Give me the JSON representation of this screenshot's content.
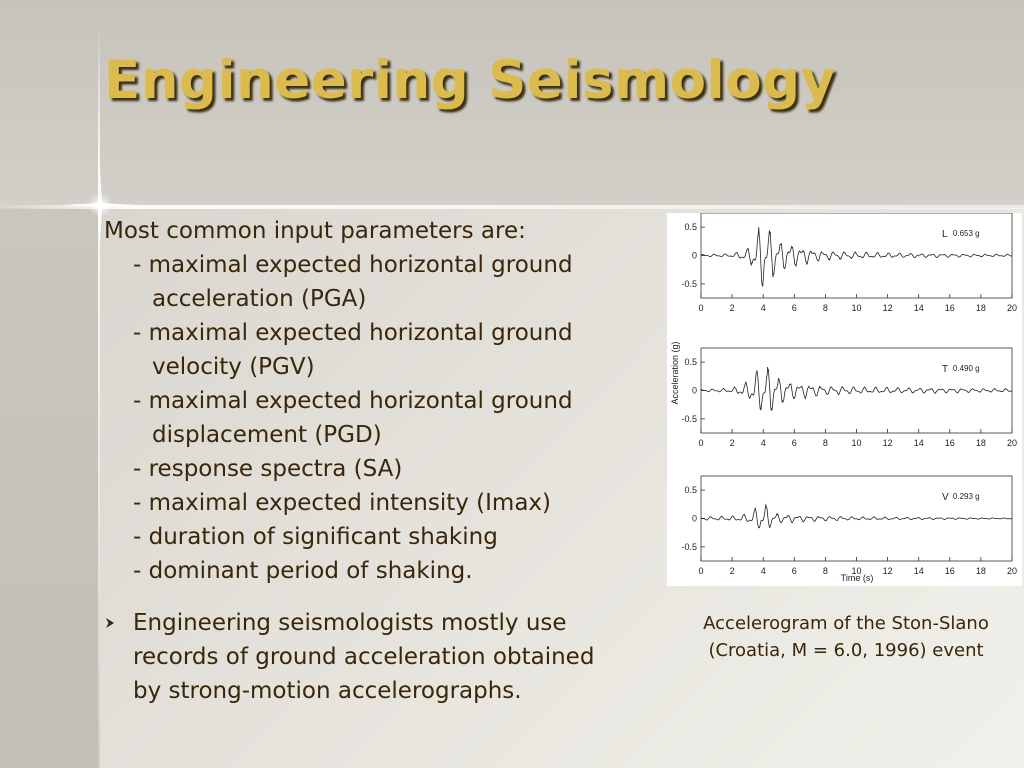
{
  "slide": {
    "title": "Engineering Seismology",
    "intro": "Most common input parameters are:",
    "params": [
      [
        "- maximal expected horizontal ground",
        "acceleration (PGA)"
      ],
      [
        "- maximal expected horizontal ground",
        "velocity (PGV)"
      ],
      [
        "- maximal expected horizontal ground",
        "displacement (PGD)"
      ],
      [
        "- response spectra (SA)"
      ],
      [
        "- maximal expected intensity (Imax)"
      ],
      [
        "- duration of significant shaking"
      ],
      [
        "- dominant period of shaking."
      ]
    ],
    "bullet_icon": "arrowhead-bullet-icon",
    "bullet_lines": [
      "Engineering seismologists mostly use",
      "records of ground acceleration obtained",
      "by strong-motion accelerographs."
    ],
    "caption_lines": [
      "Accelerogram of the Ston-Slano",
      "(Croatia, M = 6.0, 1996) event"
    ],
    "colors": {
      "title": "#dcbb4e",
      "body_text": "#3a2608",
      "trace": "#222222"
    }
  },
  "chart_data": {
    "type": "line",
    "title": "",
    "xlabel": "Time (s)",
    "ylabel": "Acceleration (g)",
    "xlim": [
      0,
      20
    ],
    "ylim": [
      -0.75,
      0.75
    ],
    "xticks": [
      0,
      2,
      4,
      6,
      8,
      10,
      12,
      14,
      16,
      18,
      20
    ],
    "yticks": [
      -0.5,
      0,
      0.5
    ],
    "ytick_labels": [
      "-0.5",
      "0",
      "0.5"
    ],
    "grid": false,
    "panels": [
      {
        "component": "L",
        "peak_label": "0.653 g",
        "peak": 0.653,
        "envelope": [
          [
            0,
            0.02
          ],
          [
            2,
            0.03
          ],
          [
            3,
            0.12
          ],
          [
            3.5,
            0.35
          ],
          [
            4,
            0.65
          ],
          [
            4.5,
            0.45
          ],
          [
            5,
            0.3
          ],
          [
            6,
            0.2
          ],
          [
            7,
            0.12
          ],
          [
            8,
            0.08
          ],
          [
            10,
            0.06
          ],
          [
            13,
            0.04
          ],
          [
            16,
            0.03
          ],
          [
            20,
            0.02
          ]
        ]
      },
      {
        "component": "T",
        "peak_label": "0.490 g",
        "peak": 0.49,
        "envelope": [
          [
            0,
            0.02
          ],
          [
            2,
            0.04
          ],
          [
            3,
            0.15
          ],
          [
            3.5,
            0.35
          ],
          [
            4,
            0.49
          ],
          [
            4.5,
            0.4
          ],
          [
            5,
            0.25
          ],
          [
            6,
            0.15
          ],
          [
            7,
            0.12
          ],
          [
            8,
            0.08
          ],
          [
            10,
            0.06
          ],
          [
            13,
            0.05
          ],
          [
            16,
            0.04
          ],
          [
            20,
            0.03
          ]
        ]
      },
      {
        "component": "V",
        "peak_label": "0.293 g",
        "peak": 0.293,
        "envelope": [
          [
            0,
            0.03
          ],
          [
            2,
            0.04
          ],
          [
            3,
            0.08
          ],
          [
            3.6,
            0.2
          ],
          [
            4,
            0.29
          ],
          [
            4.5,
            0.15
          ],
          [
            5,
            0.08
          ],
          [
            7,
            0.05
          ],
          [
            10,
            0.03
          ],
          [
            14,
            0.02
          ],
          [
            19,
            0.01
          ],
          [
            20,
            0.01
          ]
        ]
      }
    ]
  }
}
